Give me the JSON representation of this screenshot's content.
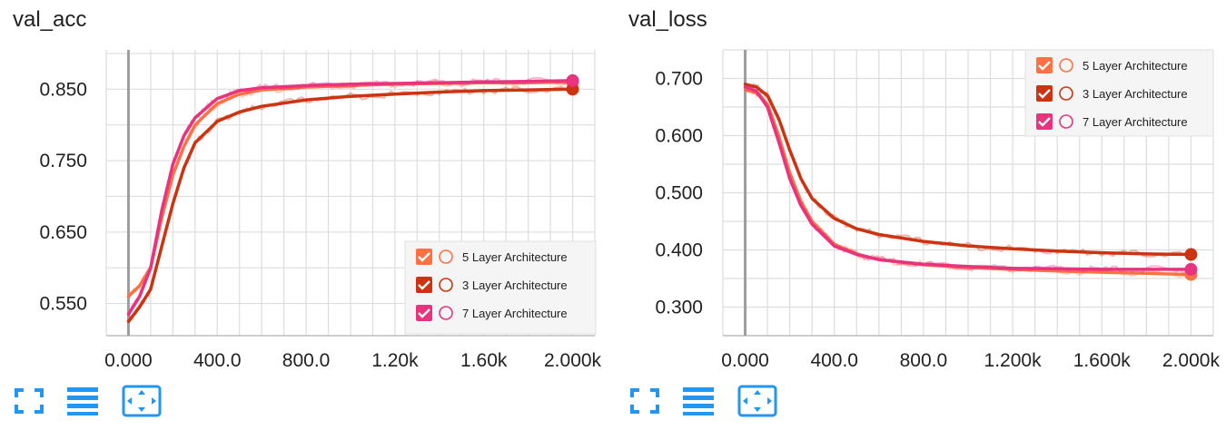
{
  "colors": {
    "five_layer": "#ff7043",
    "three_layer": "#cc3311",
    "seven_layer": "#e8337f",
    "five_layer_light": "#ffab91",
    "toolbar_icon": "#2196f3",
    "grid": "#dddddd",
    "axis": "#9e9e9e"
  },
  "toolbar": {
    "icons": [
      "fullscreen-icon",
      "lines-icon",
      "fit-domain-icon"
    ]
  },
  "chart_data": [
    {
      "type": "line",
      "title": "val_acc",
      "xlabel": "",
      "ylabel": "",
      "xlim": [
        -100,
        2100
      ],
      "ylim": [
        0.505,
        0.905
      ],
      "xticks": [
        0,
        400,
        800,
        1200,
        1600,
        2000
      ],
      "xtick_labels": [
        "0.000",
        "400.0",
        "800.0",
        "1.20k",
        "1.60k",
        "2.000k"
      ],
      "yticks": [
        0.55,
        0.65,
        0.75,
        0.85
      ],
      "ytick_labels": [
        "0.550",
        "0.650",
        "0.750",
        "0.850"
      ],
      "grid": true,
      "legend_position": "bottom-right",
      "series": [
        {
          "name": "5 Layer Architecture",
          "color": "#ff7043",
          "x": [
            0,
            50,
            100,
            150,
            200,
            250,
            300,
            400,
            500,
            600,
            800,
            1000,
            1200,
            1400,
            1600,
            1800,
            2000
          ],
          "y": [
            0.56,
            0.575,
            0.6,
            0.67,
            0.73,
            0.77,
            0.8,
            0.83,
            0.843,
            0.849,
            0.853,
            0.855,
            0.857,
            0.858,
            0.859,
            0.859,
            0.86
          ]
        },
        {
          "name": "3 Layer Architecture",
          "color": "#cc3311",
          "x": [
            0,
            50,
            100,
            150,
            200,
            250,
            300,
            400,
            500,
            600,
            800,
            1000,
            1200,
            1400,
            1600,
            1800,
            2000
          ],
          "y": [
            0.525,
            0.545,
            0.57,
            0.63,
            0.69,
            0.74,
            0.775,
            0.805,
            0.818,
            0.826,
            0.835,
            0.84,
            0.843,
            0.846,
            0.848,
            0.849,
            0.85
          ]
        },
        {
          "name": "7 Layer Architecture",
          "color": "#e8337f",
          "x": [
            0,
            50,
            100,
            150,
            200,
            250,
            300,
            400,
            500,
            600,
            800,
            1000,
            1200,
            1400,
            1600,
            1800,
            2000
          ],
          "y": [
            0.535,
            0.56,
            0.6,
            0.68,
            0.745,
            0.785,
            0.81,
            0.837,
            0.848,
            0.852,
            0.855,
            0.857,
            0.858,
            0.859,
            0.86,
            0.861,
            0.862
          ]
        }
      ]
    },
    {
      "type": "line",
      "title": "val_loss",
      "xlabel": "",
      "ylabel": "",
      "xlim": [
        -100,
        2100
      ],
      "ylim": [
        0.25,
        0.75
      ],
      "xticks": [
        0,
        400,
        800,
        1200,
        1600,
        2000
      ],
      "xtick_labels": [
        "0.000",
        "400.0",
        "800.0",
        "1.200k",
        "1.600k",
        "2.000k"
      ],
      "yticks": [
        0.3,
        0.4,
        0.5,
        0.6,
        0.7
      ],
      "ytick_labels": [
        "0.300",
        "0.400",
        "0.500",
        "0.600",
        "0.700"
      ],
      "grid": true,
      "legend_position": "top-right",
      "series": [
        {
          "name": "5 Layer Architecture",
          "color": "#ff7043",
          "x": [
            0,
            50,
            100,
            150,
            200,
            250,
            300,
            400,
            500,
            600,
            800,
            1000,
            1200,
            1400,
            1600,
            1800,
            2000
          ],
          "y": [
            0.68,
            0.675,
            0.655,
            0.6,
            0.535,
            0.485,
            0.45,
            0.41,
            0.393,
            0.383,
            0.374,
            0.369,
            0.366,
            0.363,
            0.361,
            0.359,
            0.357
          ]
        },
        {
          "name": "3 Layer Architecture",
          "color": "#cc3311",
          "x": [
            0,
            50,
            100,
            150,
            200,
            250,
            300,
            400,
            500,
            600,
            800,
            1000,
            1200,
            1400,
            1600,
            1800,
            2000
          ],
          "y": [
            0.69,
            0.685,
            0.67,
            0.63,
            0.575,
            0.525,
            0.49,
            0.455,
            0.437,
            0.427,
            0.415,
            0.407,
            0.402,
            0.398,
            0.395,
            0.393,
            0.392
          ]
        },
        {
          "name": "7 Layer Architecture",
          "color": "#e8337f",
          "x": [
            0,
            50,
            100,
            150,
            200,
            250,
            300,
            400,
            500,
            600,
            800,
            1000,
            1200,
            1400,
            1600,
            1800,
            2000
          ],
          "y": [
            0.685,
            0.678,
            0.65,
            0.59,
            0.525,
            0.478,
            0.445,
            0.407,
            0.392,
            0.383,
            0.375,
            0.371,
            0.368,
            0.367,
            0.366,
            0.366,
            0.366
          ]
        }
      ]
    }
  ]
}
